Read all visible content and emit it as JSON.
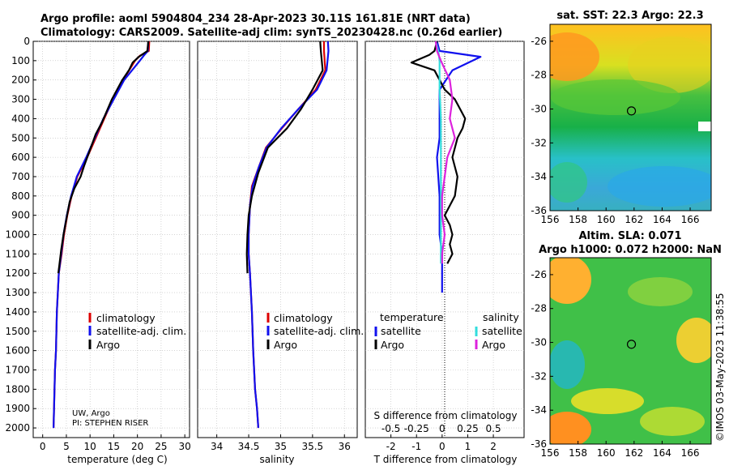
{
  "chart_data": [
    {
      "type": "line",
      "panel": "temperature",
      "title": "Argo profile: aoml 5904804_234 28-Apr-2023 30.11S 161.81E (NRT data)",
      "subtitle": "Climatology: CARS2009. Satellite-adj clim: synTS_20230428.nc (0.26d earlier)",
      "xlabel": "temperature (deg C)",
      "xlim": [
        -2,
        31
      ],
      "ylim": [
        0,
        2050
      ],
      "yticks": [
        0,
        100,
        200,
        300,
        400,
        500,
        600,
        700,
        800,
        900,
        1000,
        1100,
        1200,
        1300,
        1400,
        1500,
        1600,
        1700,
        1800,
        1900,
        2000
      ],
      "xticks": [
        0,
        5,
        10,
        15,
        20,
        25,
        30
      ],
      "legend": [
        "climatology",
        "satellite-adj. clim.",
        "Argo"
      ],
      "credit": [
        "UW, Argo",
        "PI: STEPHEN RISER"
      ],
      "series": [
        {
          "name": "climatology",
          "color": "#dd0000",
          "x": [
            22.5,
            22.4,
            20.5,
            19.5,
            17.0,
            14.8,
            13.0,
            11.2,
            9.4,
            7.3,
            6.1,
            5.2,
            4.5,
            4.0,
            3.4,
            3.0,
            2.8,
            2.6,
            2.5,
            2.4,
            2.3
          ],
          "y": [
            0,
            50,
            75,
            100,
            200,
            300,
            400,
            500,
            600,
            700,
            800,
            900,
            1000,
            1100,
            1200,
            1400,
            1600,
            1700,
            1800,
            1900,
            2000
          ]
        },
        {
          "name": "satellite-adj. clim.",
          "color": "#1010ee",
          "x": [
            22.3,
            22.2,
            21.3,
            20.5,
            17.2,
            15.0,
            12.8,
            11.0,
            9.2,
            7.2,
            6.0,
            5.1,
            4.4,
            3.9,
            3.4,
            3.0,
            2.8,
            2.6,
            2.5,
            2.4,
            2.3
          ],
          "y": [
            0,
            50,
            75,
            100,
            200,
            300,
            400,
            500,
            600,
            700,
            800,
            900,
            1000,
            1100,
            1200,
            1400,
            1600,
            1700,
            1800,
            1900,
            2000
          ]
        },
        {
          "name": "Argo",
          "color": "#000000",
          "x": [
            22.3,
            22.1,
            20.3,
            19.0,
            18.2,
            16.8,
            14.6,
            12.5,
            11.2,
            10.0,
            8.8,
            8.0,
            6.7,
            5.7,
            5.0,
            4.4,
            3.9,
            3.5,
            3.3
          ],
          "y": [
            0,
            50,
            80,
            110,
            150,
            200,
            300,
            420,
            480,
            560,
            640,
            700,
            760,
            830,
            920,
            1000,
            1080,
            1160,
            1200
          ]
        }
      ]
    },
    {
      "type": "line",
      "panel": "salinity",
      "xlabel": "salinity",
      "xlim": [
        33.7,
        36.2
      ],
      "ylim": [
        0,
        2050
      ],
      "xticks": [
        34,
        34.5,
        35,
        35.5,
        36
      ],
      "legend": [
        "climatology",
        "satellite-adj. clim.",
        "Argo"
      ],
      "series": [
        {
          "name": "climatology",
          "color": "#dd0000",
          "x": [
            35.68,
            35.68,
            35.7,
            35.55,
            35.28,
            35.02,
            34.77,
            34.66,
            34.55,
            34.52,
            34.5,
            34.5,
            34.52,
            34.55,
            34.57,
            34.6,
            34.63,
            34.65
          ],
          "y": [
            0,
            50,
            150,
            250,
            350,
            450,
            550,
            650,
            750,
            850,
            1000,
            1100,
            1200,
            1400,
            1600,
            1800,
            1900,
            2000
          ]
        },
        {
          "name": "satellite-adj. clim.",
          "color": "#1010ee",
          "x": [
            35.74,
            35.75,
            35.72,
            35.57,
            35.28,
            35.01,
            34.78,
            34.66,
            34.56,
            34.52,
            34.5,
            34.5,
            34.52,
            34.55,
            34.57,
            34.6,
            34.63,
            34.65
          ],
          "y": [
            0,
            50,
            150,
            250,
            350,
            450,
            550,
            650,
            750,
            850,
            1000,
            1100,
            1200,
            1400,
            1600,
            1800,
            1900,
            2000
          ]
        },
        {
          "name": "Argo",
          "color": "#000000",
          "x": [
            35.62,
            35.63,
            35.66,
            35.5,
            35.32,
            35.1,
            34.8,
            34.65,
            34.55,
            34.5,
            34.48,
            34.47,
            34.48
          ],
          "y": [
            0,
            50,
            150,
            250,
            350,
            450,
            550,
            680,
            800,
            900,
            1000,
            1100,
            1200
          ]
        }
      ]
    },
    {
      "type": "line",
      "panel": "difference",
      "xlabel": "T difference from climatology",
      "xlabel_top": "S difference from climatology",
      "xlim": [
        -3,
        3.2
      ],
      "ylim": [
        0,
        2050
      ],
      "xticks": [
        -2,
        -1,
        0,
        1,
        2
      ],
      "xticks_top": [
        "-0.5",
        "-0.25",
        "0",
        "0.25",
        "0.5"
      ],
      "legend_left": [
        "temperature",
        "satellite",
        "Argo"
      ],
      "legend_right": [
        "salinity",
        "satellite",
        "Argo"
      ],
      "series": [
        {
          "name": "temperature satellite",
          "color": "#1010ee",
          "x": [
            -0.2,
            -0.1,
            1.5,
            0.4,
            -0.1,
            -0.1,
            -0.1,
            -0.2,
            -0.1,
            -0.1,
            0.0,
            0.0,
            0.0
          ],
          "y": [
            0,
            50,
            80,
            150,
            250,
            400,
            500,
            600,
            800,
            1000,
            1100,
            1200,
            1300
          ]
        },
        {
          "name": "temperature Argo",
          "color": "#000000",
          "x": [
            -0.2,
            -0.3,
            -0.5,
            -1.2,
            -0.3,
            0.1,
            0.5,
            0.7,
            0.9,
            0.8,
            0.6,
            0.4,
            0.6,
            0.5,
            0.3,
            0.1,
            0.3,
            0.4,
            0.3,
            0.4,
            0.2
          ],
          "y": [
            0,
            50,
            70,
            110,
            150,
            250,
            300,
            350,
            400,
            450,
            500,
            600,
            700,
            800,
            850,
            900,
            950,
            1000,
            1050,
            1100,
            1150
          ]
        },
        {
          "name": "salinity satellite",
          "color": "#33dddd",
          "x": [
            -0.25,
            -0.15,
            -0.1,
            -0.1,
            -0.05,
            -0.05,
            -0.05,
            -0.05,
            -0.05,
            -0.05,
            -0.05
          ],
          "y": [
            0,
            50,
            100,
            250,
            400,
            600,
            800,
            900,
            1000,
            1100,
            1150
          ]
        },
        {
          "name": "salinity Argo",
          "color": "#dd22dd",
          "x": [
            -0.25,
            -0.2,
            -0.05,
            0.3,
            0.4,
            0.3,
            0.5,
            0.2,
            0.1,
            0.0,
            0.0,
            0.1,
            0.0,
            0.0
          ],
          "y": [
            0,
            50,
            100,
            200,
            300,
            400,
            500,
            600,
            700,
            800,
            900,
            1000,
            1100,
            1150
          ]
        }
      ]
    },
    {
      "type": "heatmap",
      "panel": "sst-map",
      "title": "sat. SST: 22.3 Argo: 22.3",
      "xticks": [
        156,
        158,
        160,
        162,
        164,
        166
      ],
      "yticks": [
        -26,
        -28,
        -30,
        -32,
        -34,
        -36
      ],
      "xlim": [
        156,
        167.5
      ],
      "ylim": [
        -36,
        -25
      ],
      "float_position": {
        "lon": 161.81,
        "lat": -30.11
      }
    },
    {
      "type": "heatmap",
      "panel": "sla-map",
      "title_line1": "Altim. SLA: 0.071",
      "title_line2": "Argo h1000: 0.072 h2000: NaN",
      "xticks": [
        156,
        158,
        160,
        162,
        164,
        166
      ],
      "yticks": [
        -26,
        -28,
        -30,
        -32,
        -34,
        -36
      ],
      "xlim": [
        156,
        167.5
      ],
      "ylim": [
        -36,
        -25
      ],
      "float_position": {
        "lon": 161.81,
        "lat": -30.11
      }
    }
  ],
  "watermark": "©IMOS 03-May-2023 11:38:55"
}
